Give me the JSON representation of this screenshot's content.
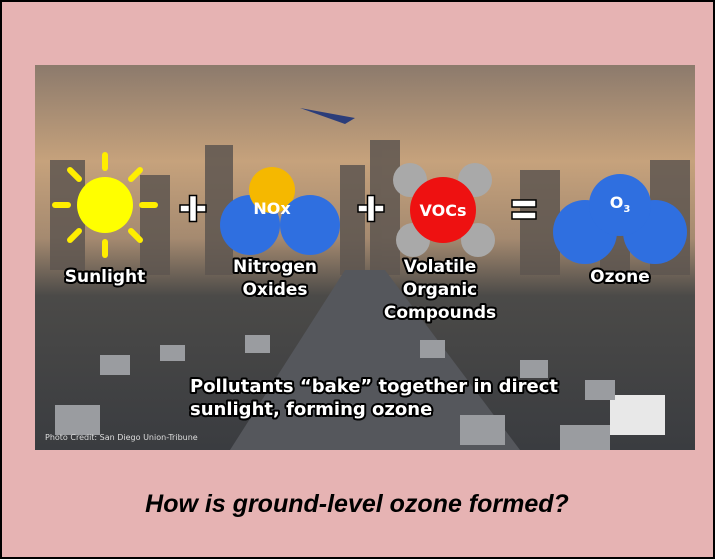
{
  "diagram": {
    "items": [
      {
        "label_lines": [
          "Sunlight"
        ]
      },
      {
        "symbol": "NOx",
        "label_lines": [
          "Nitrogen",
          "Oxides"
        ]
      },
      {
        "symbol": "VOCs",
        "label_lines": [
          "Volatile",
          "Organic",
          "Compounds"
        ]
      },
      {
        "formula": {
          "base": "O",
          "subscript": "3"
        },
        "label_lines": [
          "Ozone"
        ]
      }
    ],
    "note_lines": [
      "Pollutants “bake” together in direct",
      "sunlight, forming ozone"
    ],
    "photo_credit": "Photo Credit: San Diego Union-Tribune"
  },
  "caption": "How is ground-level ozone formed?"
}
